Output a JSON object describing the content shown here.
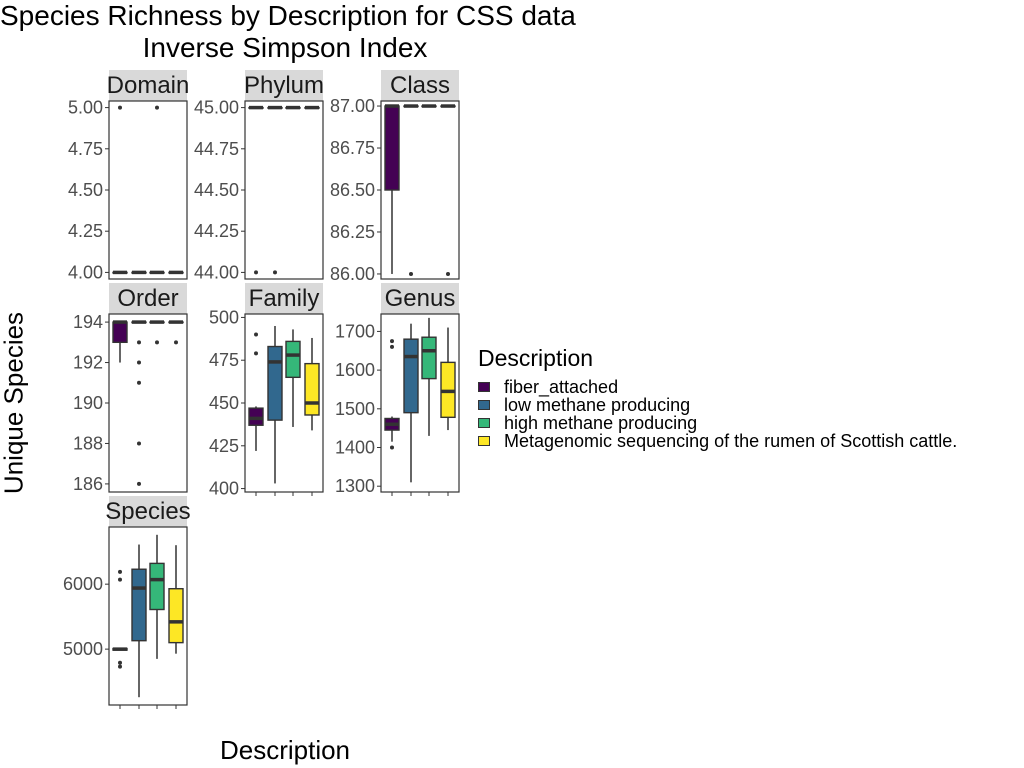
{
  "chart_data": {
    "type": "box",
    "title": [
      "Species Richness by Description for CSS data",
      "Inverse Simpson Index"
    ],
    "xlabel": "Description",
    "ylabel": "Unique Species",
    "legend": {
      "title": "Description",
      "position": "right",
      "entries": [
        {
          "name": "fiber_attached",
          "color": "#440154"
        },
        {
          "name": "low methane producing",
          "color": "#31688E"
        },
        {
          "name": "high methane producing",
          "color": "#35B779"
        },
        {
          "name": "Metagenomic sequencing of the rumen of Scottish cattle.",
          "color": "#FDE725"
        }
      ]
    },
    "facets": [
      {
        "label": "Domain",
        "ylim": [
          3.96,
          5.04
        ],
        "ticks": [
          {
            "v": 4.0,
            "t": "4.00"
          },
          {
            "v": 4.25,
            "t": "4.25"
          },
          {
            "v": 4.5,
            "t": "4.50"
          },
          {
            "v": 4.75,
            "t": "4.75"
          },
          {
            "v": 5.0,
            "t": "5.00"
          }
        ],
        "boxes": [
          {
            "q1": 4,
            "median": 4,
            "q3": 4,
            "lo": 4,
            "hi": 4,
            "outliers": [
              5
            ]
          },
          {
            "q1": 4,
            "median": 4,
            "q3": 4,
            "lo": 4,
            "hi": 4,
            "outliers": []
          },
          {
            "q1": 4,
            "median": 4,
            "q3": 4,
            "lo": 4,
            "hi": 4,
            "outliers": [
              5
            ]
          },
          {
            "q1": 4,
            "median": 4,
            "q3": 4,
            "lo": 4,
            "hi": 4,
            "outliers": []
          }
        ]
      },
      {
        "label": "Phylum",
        "ylim": [
          43.96,
          45.04
        ],
        "ticks": [
          {
            "v": 44.0,
            "t": "44.00"
          },
          {
            "v": 44.25,
            "t": "44.25"
          },
          {
            "v": 44.5,
            "t": "44.50"
          },
          {
            "v": 44.75,
            "t": "44.75"
          },
          {
            "v": 45.0,
            "t": "45.00"
          }
        ],
        "boxes": [
          {
            "q1": 45,
            "median": 45,
            "q3": 45,
            "lo": 45,
            "hi": 45,
            "outliers": [
              44
            ]
          },
          {
            "q1": 45,
            "median": 45,
            "q3": 45,
            "lo": 45,
            "hi": 45,
            "outliers": [
              44
            ]
          },
          {
            "q1": 45,
            "median": 45,
            "q3": 45,
            "lo": 45,
            "hi": 45,
            "outliers": []
          },
          {
            "q1": 45,
            "median": 45,
            "q3": 45,
            "lo": 45,
            "hi": 45,
            "outliers": []
          }
        ]
      },
      {
        "label": "Class",
        "ylim": [
          85.97,
          87.03
        ],
        "ticks": [
          {
            "v": 86.0,
            "t": "86.00"
          },
          {
            "v": 86.25,
            "t": "86.25"
          },
          {
            "v": 86.5,
            "t": "86.50"
          },
          {
            "v": 86.75,
            "t": "86.75"
          },
          {
            "v": 87.0,
            "t": "87.00"
          }
        ],
        "boxes": [
          {
            "q1": 86.5,
            "median": 87,
            "q3": 87,
            "lo": 86,
            "hi": 87,
            "outliers": []
          },
          {
            "q1": 87,
            "median": 87,
            "q3": 87,
            "lo": 87,
            "hi": 87,
            "outliers": [
              86
            ]
          },
          {
            "q1": 87,
            "median": 87,
            "q3": 87,
            "lo": 87,
            "hi": 87,
            "outliers": []
          },
          {
            "q1": 87,
            "median": 87,
            "q3": 87,
            "lo": 87,
            "hi": 87,
            "outliers": [
              86
            ]
          }
        ]
      },
      {
        "label": "Order",
        "ylim": [
          185.6,
          194.4
        ],
        "ticks": [
          {
            "v": 186,
            "t": "186"
          },
          {
            "v": 188,
            "t": "188"
          },
          {
            "v": 190,
            "t": "190"
          },
          {
            "v": 192,
            "t": "192"
          },
          {
            "v": 194,
            "t": "194"
          }
        ],
        "boxes": [
          {
            "q1": 193,
            "median": 194,
            "q3": 194,
            "lo": 192,
            "hi": 194,
            "outliers": []
          },
          {
            "q1": 194,
            "median": 194,
            "q3": 194,
            "lo": 194,
            "hi": 194,
            "outliers": [
              193,
              192,
              191,
              188,
              186
            ]
          },
          {
            "q1": 194,
            "median": 194,
            "q3": 194,
            "lo": 194,
            "hi": 194,
            "outliers": [
              193
            ]
          },
          {
            "q1": 194,
            "median": 194,
            "q3": 194,
            "lo": 194,
            "hi": 194,
            "outliers": [
              193
            ]
          }
        ]
      },
      {
        "label": "Family",
        "ylim": [
          398,
          502
        ],
        "ticks": [
          {
            "v": 400,
            "t": "400"
          },
          {
            "v": 425,
            "t": "425"
          },
          {
            "v": 450,
            "t": "450"
          },
          {
            "v": 475,
            "t": "475"
          },
          {
            "v": 500,
            "t": "500"
          }
        ],
        "boxes": [
          {
            "q1": 437,
            "median": 441,
            "q3": 447,
            "lo": 422,
            "hi": 448,
            "outliers": [
              490,
              479
            ]
          },
          {
            "q1": 440,
            "median": 474,
            "q3": 483,
            "lo": 403,
            "hi": 495,
            "outliers": []
          },
          {
            "q1": 465,
            "median": 478,
            "q3": 486,
            "lo": 436,
            "hi": 493,
            "outliers": []
          },
          {
            "q1": 443,
            "median": 450,
            "q3": 473,
            "lo": 434,
            "hi": 488,
            "outliers": []
          }
        ]
      },
      {
        "label": "Genus",
        "ylim": [
          1285,
          1745
        ],
        "ticks": [
          {
            "v": 1300,
            "t": "1300"
          },
          {
            "v": 1400,
            "t": "1400"
          },
          {
            "v": 1500,
            "t": "1500"
          },
          {
            "v": 1600,
            "t": "1600"
          },
          {
            "v": 1700,
            "t": "1700"
          }
        ],
        "boxes": [
          {
            "q1": 1445,
            "median": 1460,
            "q3": 1475,
            "lo": 1415,
            "hi": 1480,
            "outliers": [
              1675,
              1660,
              1400
            ]
          },
          {
            "q1": 1490,
            "median": 1635,
            "q3": 1680,
            "lo": 1310,
            "hi": 1720,
            "outliers": []
          },
          {
            "q1": 1578,
            "median": 1650,
            "q3": 1685,
            "lo": 1430,
            "hi": 1735,
            "outliers": []
          },
          {
            "q1": 1478,
            "median": 1545,
            "q3": 1620,
            "lo": 1445,
            "hi": 1710,
            "outliers": []
          }
        ]
      },
      {
        "label": "Species",
        "ylim": [
          4140,
          6880
        ],
        "ticks": [
          {
            "v": 5000,
            "t": "5000"
          },
          {
            "v": 6000,
            "t": "6000"
          }
        ],
        "boxes": [
          {
            "q1": 4985,
            "median": 5000,
            "q3": 5010,
            "lo": 4985,
            "hi": 5010,
            "outliers": [
              6190,
              6070,
              4790,
              4730
            ]
          },
          {
            "q1": 5130,
            "median": 5940,
            "q3": 6230,
            "lo": 4260,
            "hi": 6610,
            "outliers": []
          },
          {
            "q1": 5610,
            "median": 6070,
            "q3": 6320,
            "lo": 4850,
            "hi": 6760,
            "outliers": []
          },
          {
            "q1": 5100,
            "median": 5420,
            "q3": 5930,
            "lo": 4930,
            "hi": 6600,
            "outliers": []
          }
        ]
      }
    ]
  }
}
